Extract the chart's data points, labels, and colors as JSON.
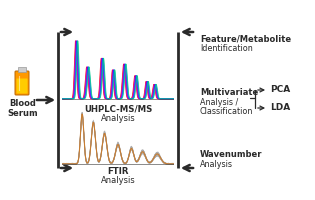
{
  "bg_color": "#ffffff",
  "blood_serum_label": "Blood\nSerum",
  "uhplc_bold": "UHPLC-MS/MS",
  "uhplc_normal": "Analysis",
  "ftir_bold": "FTIR",
  "ftir_normal": "Analysis",
  "feature_bold": "Feature/Metabolite",
  "feature_normal": "Identification",
  "multivariate_bold": "Multivariate",
  "multivariate_line1": "Analysis /",
  "multivariate_line2": "Classification",
  "wavenumber_bold": "Wavenumber",
  "wavenumber_normal": "Analysis",
  "pca_label": "PCA",
  "lda_label": "LDA",
  "arrow_color": "#2a2a2a",
  "text_color": "#2a2a2a",
  "ms_colors": [
    "#ff0000",
    "#dd0088",
    "#aa00cc",
    "#6600ff",
    "#0044ff",
    "#0099cc",
    "#00cc88"
  ],
  "ftir_gray": "#aaaaaa",
  "ftir_accent": "#cc7722",
  "vial_body": "#ff9900",
  "vial_liquid": "#ffcc00",
  "vial_cap": "#cccccc"
}
